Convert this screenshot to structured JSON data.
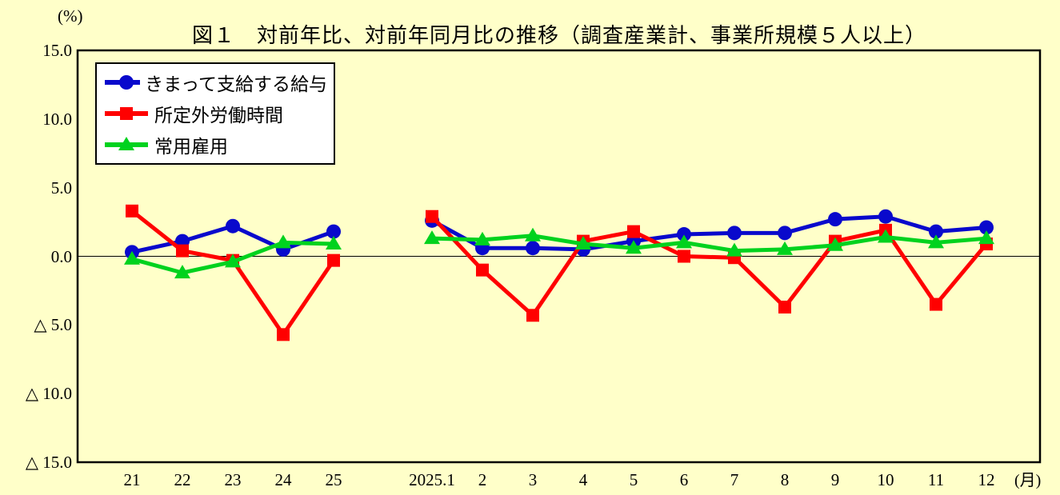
{
  "chart_data": {
    "type": "line",
    "title": "図１　対前年比、対前年同月比の推移（調査産業計、事業所規模５人以上）",
    "y_unit_label": "(%)",
    "x_unit_label": "(月)",
    "ylim": [
      -15,
      15
    ],
    "grid": false,
    "legend_position": "top-left",
    "zero_line": true,
    "y_ticks": [
      {
        "value": 15,
        "label": "15.0"
      },
      {
        "value": 10,
        "label": "10.0"
      },
      {
        "value": 5,
        "label": "5.0"
      },
      {
        "value": 0,
        "label": "0.0"
      },
      {
        "value": -5,
        "label": "△ 5.0"
      },
      {
        "value": -10,
        "label": "△ 10.0"
      },
      {
        "value": -15,
        "label": "△ 15.0"
      }
    ],
    "x_categories_years": [
      "21",
      "22",
      "23",
      "24",
      "25"
    ],
    "x_categories_months": [
      "2025.1",
      "2",
      "3",
      "4",
      "5",
      "6",
      "7",
      "8",
      "9",
      "10",
      "11",
      "12"
    ],
    "series": [
      {
        "name": "きまって支給する給与",
        "color": "#0909CC",
        "marker": "circle",
        "years": [
          0.3,
          1.1,
          2.2,
          0.5,
          1.8
        ],
        "months": [
          2.6,
          0.6,
          0.6,
          0.5,
          1.1,
          1.6,
          1.7,
          1.7,
          2.7,
          2.9,
          1.8,
          2.1
        ]
      },
      {
        "name": "所定外労働時間",
        "color": "#FF0000",
        "marker": "square",
        "years": [
          3.3,
          0.4,
          -0.3,
          -5.7,
          -0.3
        ],
        "months": [
          2.9,
          -1.0,
          -4.3,
          1.1,
          1.8,
          0.0,
          -0.1,
          -3.7,
          1.1,
          1.9,
          -3.5,
          0.9
        ]
      },
      {
        "name": "常用雇用",
        "color": "#00D21E",
        "marker": "triangle",
        "years": [
          -0.2,
          -1.2,
          -0.4,
          1.0,
          0.9
        ],
        "months": [
          1.3,
          1.2,
          1.5,
          0.9,
          0.6,
          1.0,
          0.4,
          0.5,
          0.8,
          1.4,
          1.0,
          1.3
        ]
      }
    ]
  }
}
